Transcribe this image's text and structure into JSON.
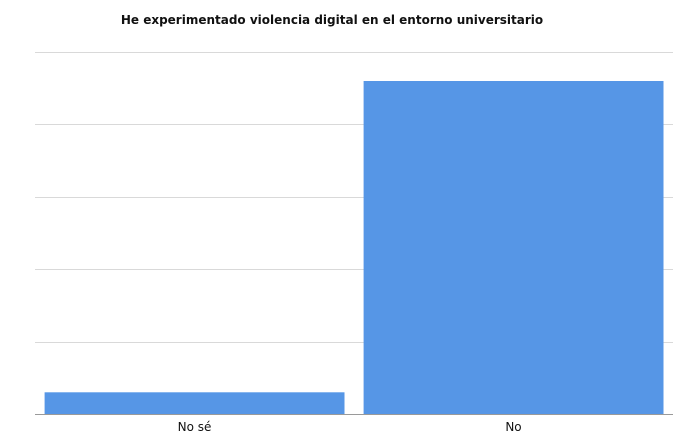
{
  "chart_data": {
    "type": "bar",
    "title": "He experimentado violencia digital en el entorno universitario",
    "categories": [
      "No sé",
      "No"
    ],
    "values": [
      3,
      46
    ],
    "ylim": [
      0,
      50
    ],
    "yticks": [
      0,
      10,
      20,
      30,
      40,
      50
    ],
    "show_y_tick_labels": false,
    "grid": true,
    "legend": "none",
    "colors": {
      "bar": "#5696e6",
      "grid": "#d9d9d9",
      "axis": "#9a9a9a"
    }
  }
}
